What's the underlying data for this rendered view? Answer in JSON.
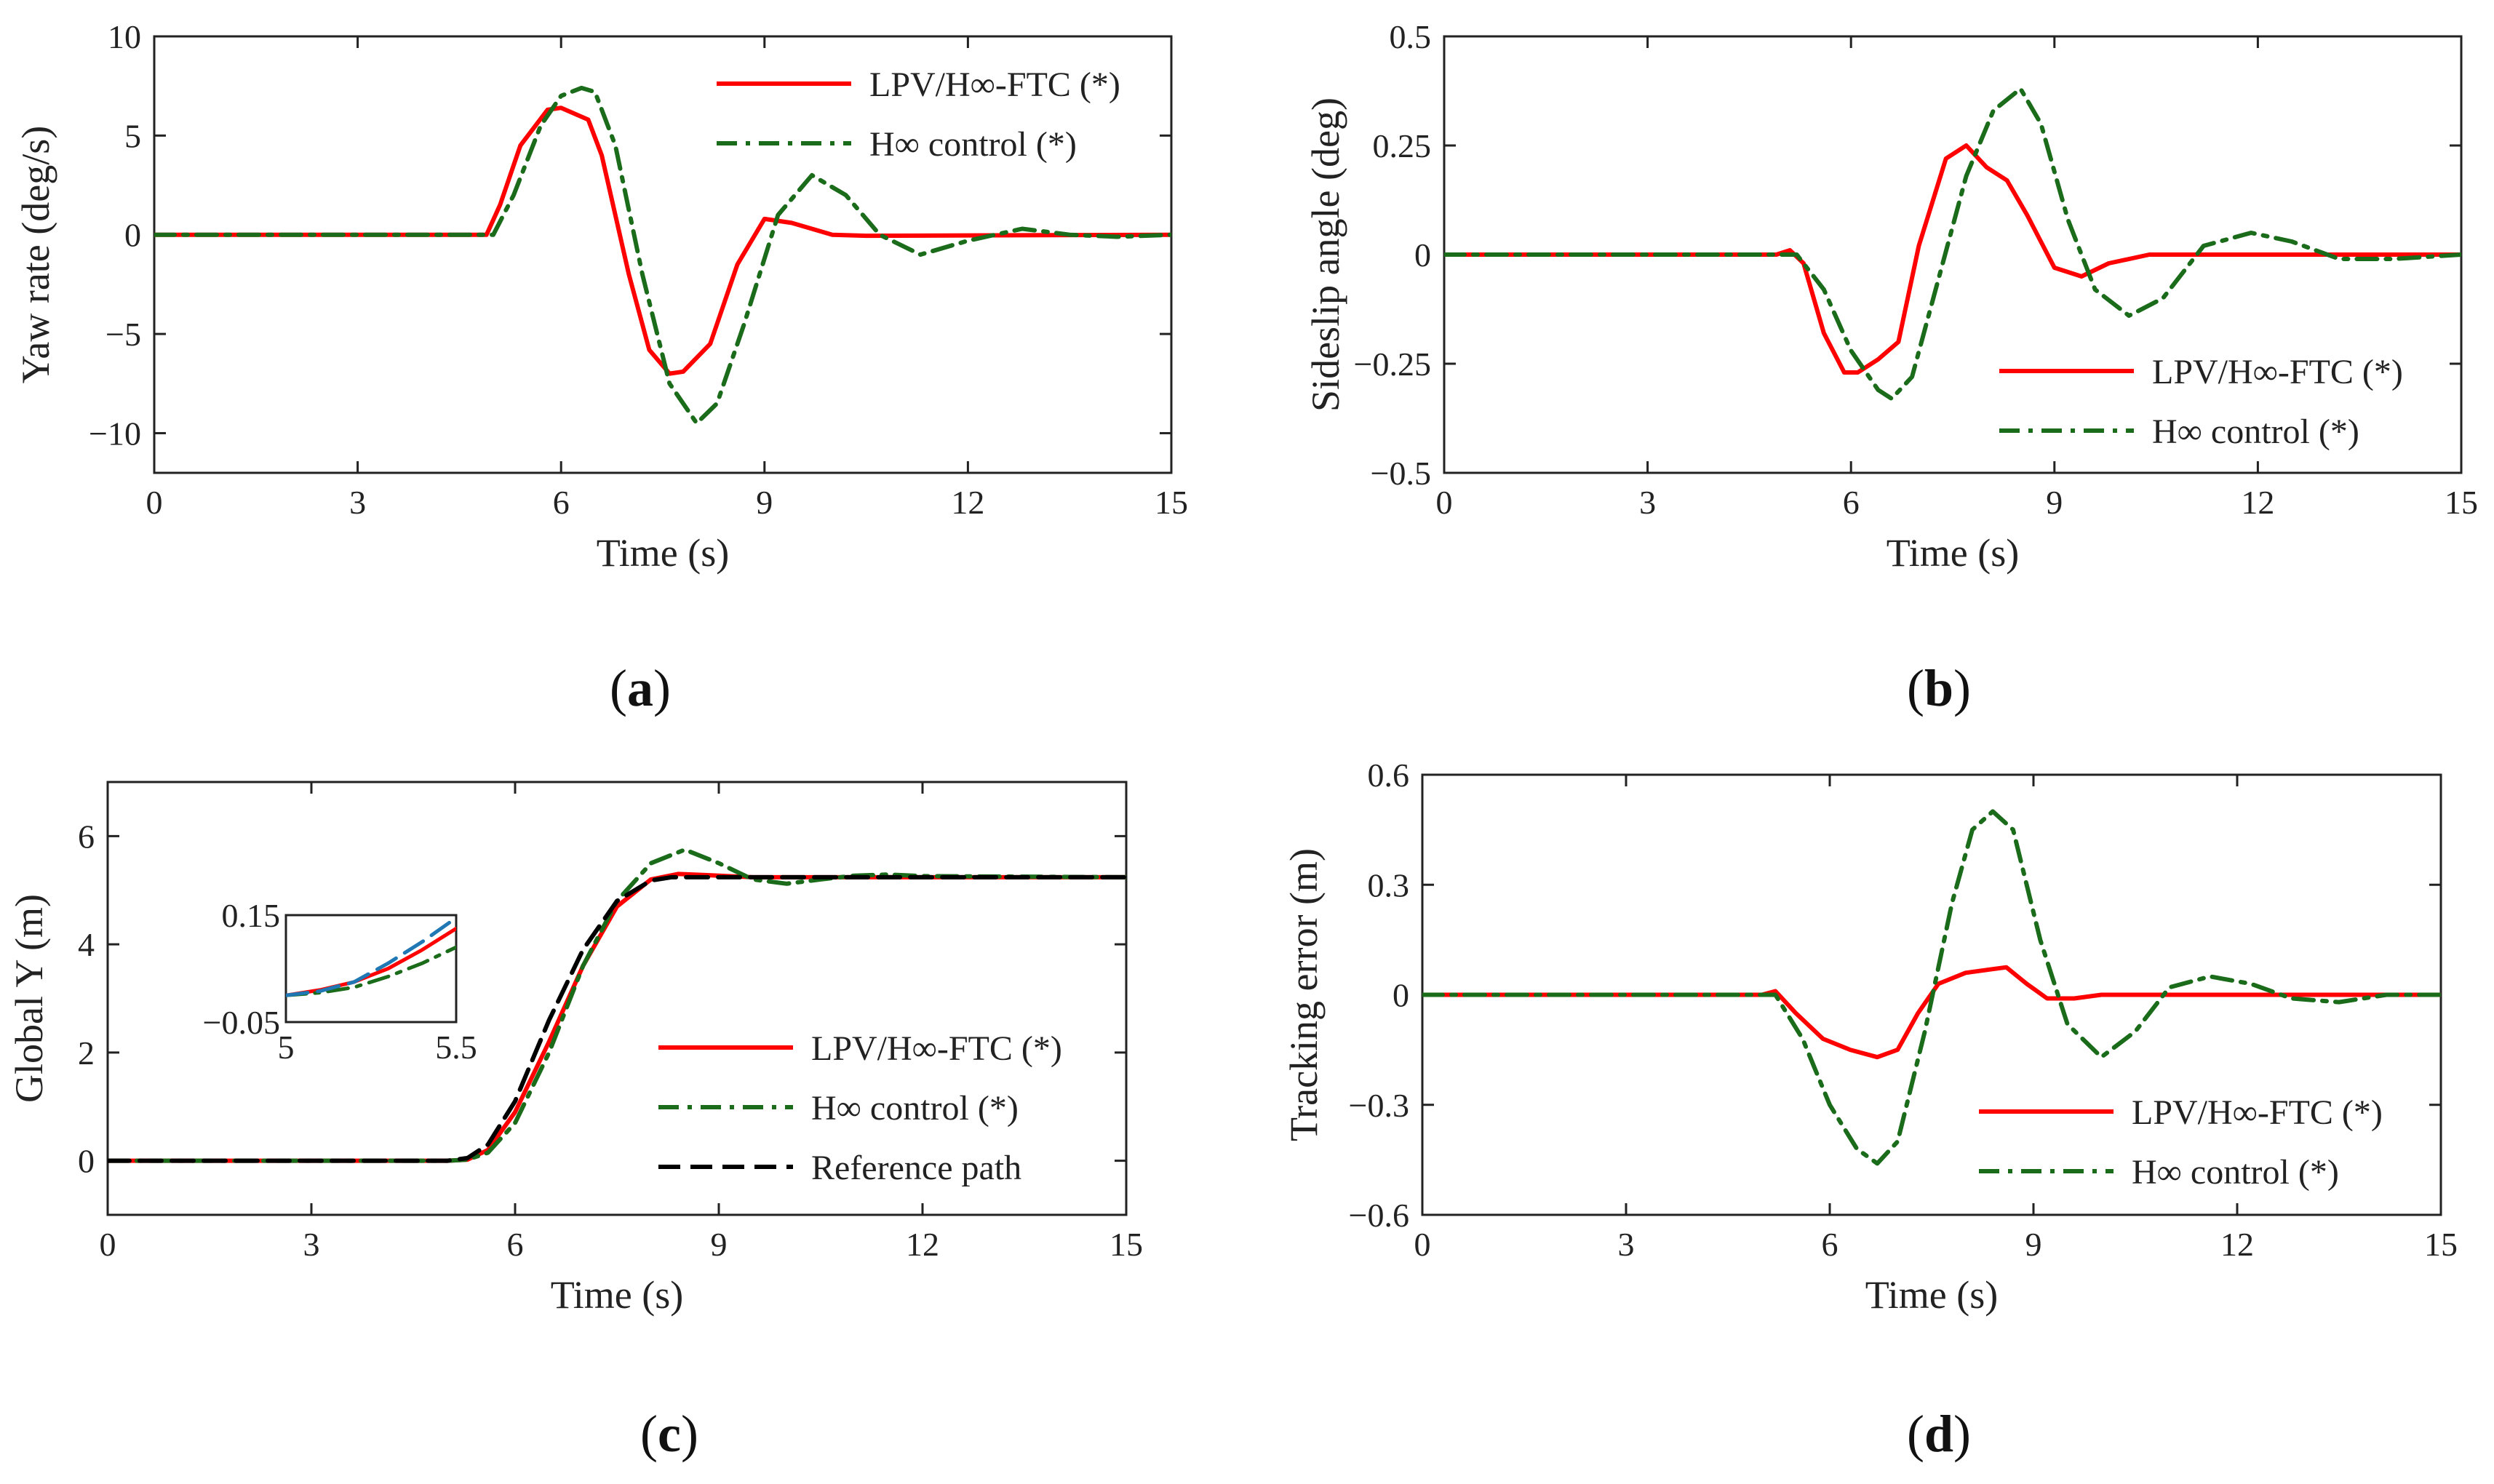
{
  "figure": {
    "panel_labels": {
      "a": "a",
      "b": "b",
      "c": "c",
      "d": "d"
    }
  },
  "chart_data": [
    {
      "id": "a",
      "type": "line",
      "title": "",
      "caption": "(a)",
      "xlabel": "Time (s)",
      "ylabel": "Yaw rate (deg/s)",
      "xlim": [
        0,
        15
      ],
      "ylim": [
        -12,
        10
      ],
      "xticks": [
        0,
        3,
        6,
        9,
        12,
        15
      ],
      "xtick_labels": [
        "0",
        "3",
        "6",
        "9",
        "12",
        "15"
      ],
      "yticks": [
        -10,
        -5,
        0,
        5,
        10
      ],
      "ytick_labels": [
        "−10",
        "−5",
        "0",
        "5",
        "10"
      ],
      "legend_position": "top-right",
      "series": [
        {
          "name": "LPV/H∞-FTC (*)",
          "color": "#ff0000",
          "style": "solid",
          "x": [
            0,
            4.9,
            5.1,
            5.4,
            5.8,
            6.0,
            6.4,
            6.6,
            7.0,
            7.3,
            7.6,
            7.8,
            8.2,
            8.6,
            9.0,
            9.4,
            10.0,
            10.5,
            15
          ],
          "y": [
            0,
            0,
            1.5,
            4.5,
            6.3,
            6.4,
            5.8,
            4.0,
            -2.0,
            -5.8,
            -7.0,
            -6.9,
            -5.5,
            -1.5,
            0.8,
            0.6,
            0.0,
            -0.05,
            0
          ]
        },
        {
          "name": "H∞ control (*)",
          "color": "#1a6b1a",
          "style": "dashdot",
          "x": [
            0,
            5.0,
            5.3,
            5.7,
            6.0,
            6.3,
            6.5,
            6.8,
            7.2,
            7.6,
            8.0,
            8.3,
            8.7,
            9.2,
            9.7,
            10.2,
            10.7,
            11.3,
            12.0,
            12.8,
            13.5,
            14.2,
            15
          ],
          "y": [
            0,
            0,
            2.0,
            5.5,
            7.0,
            7.4,
            7.2,
            4.5,
            -2.0,
            -7.5,
            -9.5,
            -8.5,
            -4.5,
            1.0,
            3.0,
            2.0,
            0.0,
            -1.0,
            -0.3,
            0.3,
            0.0,
            -0.1,
            0
          ]
        }
      ]
    },
    {
      "id": "b",
      "type": "line",
      "title": "",
      "caption": "(b)",
      "xlabel": "Time (s)",
      "ylabel": "Sideslip angle (deg)",
      "xlim": [
        0,
        15
      ],
      "ylim": [
        -0.5,
        0.5
      ],
      "xticks": [
        0,
        3,
        6,
        9,
        12,
        15
      ],
      "xtick_labels": [
        "0",
        "3",
        "6",
        "9",
        "12",
        "15"
      ],
      "yticks": [
        -0.5,
        -0.25,
        0,
        0.25,
        0.5
      ],
      "ytick_labels": [
        "−0.5",
        "−0.25",
        "0",
        "0.25",
        "0.5"
      ],
      "legend_position": "bottom-right",
      "series": [
        {
          "name": "LPV/H∞-FTC (*)",
          "color": "#ff0000",
          "style": "solid",
          "x": [
            0,
            4.9,
            5.1,
            5.3,
            5.6,
            5.9,
            6.1,
            6.4,
            6.7,
            7.0,
            7.4,
            7.7,
            8.0,
            8.3,
            8.6,
            9.0,
            9.4,
            9.8,
            10.4,
            11.0,
            15
          ],
          "y": [
            0,
            0,
            0.01,
            -0.02,
            -0.18,
            -0.27,
            -0.27,
            -0.24,
            -0.2,
            0.02,
            0.22,
            0.25,
            0.2,
            0.17,
            0.09,
            -0.03,
            -0.05,
            -0.02,
            0.0,
            0.0,
            0
          ]
        },
        {
          "name": "H∞ control (*)",
          "color": "#1a6b1a",
          "style": "dashdot",
          "x": [
            0,
            5.0,
            5.2,
            5.6,
            6.0,
            6.4,
            6.6,
            6.9,
            7.3,
            7.7,
            8.1,
            8.5,
            8.8,
            9.2,
            9.6,
            10.1,
            10.6,
            11.2,
            11.9,
            12.5,
            13.2,
            14.0,
            15
          ],
          "y": [
            0,
            0,
            0.0,
            -0.08,
            -0.22,
            -0.31,
            -0.33,
            -0.28,
            -0.05,
            0.18,
            0.33,
            0.38,
            0.3,
            0.08,
            -0.08,
            -0.14,
            -0.1,
            0.02,
            0.05,
            0.03,
            -0.01,
            -0.01,
            0
          ]
        }
      ]
    },
    {
      "id": "c",
      "type": "line",
      "title": "",
      "caption": "(c)",
      "xlabel": "Time (s)",
      "ylabel": "Global Y (m)",
      "xlim": [
        0,
        15
      ],
      "ylim": [
        -1,
        7
      ],
      "xticks": [
        0,
        3,
        6,
        9,
        12,
        15
      ],
      "xtick_labels": [
        "0",
        "3",
        "6",
        "9",
        "12",
        "15"
      ],
      "yticks": [
        0,
        2,
        4,
        6
      ],
      "ytick_labels": [
        "0",
        "2",
        "4",
        "6"
      ],
      "legend_position": "bottom-right",
      "series": [
        {
          "name": "LPV/H∞-FTC (*)",
          "color": "#ff0000",
          "style": "solid",
          "x": [
            0,
            5.0,
            5.3,
            5.6,
            6.0,
            6.5,
            7.0,
            7.5,
            8.0,
            8.4,
            8.8,
            9.5,
            15
          ],
          "y": [
            0,
            0,
            0.02,
            0.2,
            0.9,
            2.2,
            3.6,
            4.7,
            5.2,
            5.3,
            5.28,
            5.24,
            5.24
          ]
        },
        {
          "name": "H∞ control (*)",
          "color": "#1a6b1a",
          "style": "dashdot",
          "x": [
            0,
            5.0,
            5.3,
            5.6,
            6.0,
            6.5,
            7.0,
            7.5,
            8.0,
            8.5,
            9.0,
            9.5,
            10.0,
            10.5,
            11.0,
            11.5,
            12.0,
            15
          ],
          "y": [
            0,
            0,
            0.02,
            0.15,
            0.7,
            2.0,
            3.6,
            4.8,
            5.5,
            5.75,
            5.5,
            5.2,
            5.12,
            5.2,
            5.27,
            5.29,
            5.26,
            5.24
          ]
        },
        {
          "name": "Reference path",
          "color": "#000000",
          "style": "dashed",
          "x": [
            0,
            5.0,
            5.3,
            5.6,
            6.0,
            6.5,
            7.0,
            7.5,
            8.0,
            8.3,
            8.6,
            15
          ],
          "y": [
            0,
            0,
            0.05,
            0.3,
            1.1,
            2.6,
            3.9,
            4.8,
            5.18,
            5.24,
            5.24,
            5.24
          ]
        }
      ],
      "inset": {
        "xlim": [
          5,
          5.5
        ],
        "ylim": [
          -0.05,
          0.15
        ],
        "xtick_labels": [
          "5",
          "5.5"
        ],
        "ytick_labels": [
          "−0.05",
          "0.15"
        ],
        "series": [
          {
            "name": "LPV/H∞-FTC (*)",
            "color": "#ff0000",
            "style": "solid",
            "x": [
              5.0,
              5.1,
              5.2,
              5.3,
              5.4,
              5.5
            ],
            "y": [
              0.0,
              0.01,
              0.025,
              0.05,
              0.085,
              0.125
            ]
          },
          {
            "name": "H∞ control (*)",
            "color": "#1a6b1a",
            "style": "dashdot",
            "x": [
              5.0,
              5.1,
              5.2,
              5.3,
              5.4,
              5.5
            ],
            "y": [
              0.0,
              0.005,
              0.015,
              0.035,
              0.06,
              0.09
            ]
          },
          {
            "name": "Reference path",
            "color": "#1f77b4",
            "style": "dashed",
            "x": [
              5.0,
              5.1,
              5.2,
              5.3,
              5.4,
              5.5
            ],
            "y": [
              0.0,
              0.008,
              0.025,
              0.06,
              0.1,
              0.145
            ]
          }
        ]
      }
    },
    {
      "id": "d",
      "type": "line",
      "title": "",
      "caption": "(d)",
      "xlabel": "Time (s)",
      "ylabel": "Tracking error (m)",
      "xlim": [
        0,
        15
      ],
      "ylim": [
        -0.6,
        0.6
      ],
      "xticks": [
        0,
        3,
        6,
        9,
        12,
        15
      ],
      "xtick_labels": [
        "0",
        "3",
        "6",
        "9",
        "12",
        "15"
      ],
      "yticks": [
        -0.6,
        -0.3,
        0,
        0.3,
        0.6
      ],
      "ytick_labels": [
        "−0.6",
        "−0.3",
        "0",
        "0.3",
        "0.6"
      ],
      "legend_position": "bottom-right",
      "series": [
        {
          "name": "LPV/H∞-FTC (*)",
          "color": "#ff0000",
          "style": "solid",
          "x": [
            0,
            5.0,
            5.2,
            5.5,
            5.9,
            6.3,
            6.7,
            7.0,
            7.3,
            7.6,
            8.0,
            8.4,
            8.6,
            8.9,
            9.2,
            9.6,
            10.0,
            15
          ],
          "y": [
            0,
            0,
            0.01,
            -0.05,
            -0.12,
            -0.15,
            -0.17,
            -0.15,
            -0.05,
            0.03,
            0.06,
            0.07,
            0.075,
            0.03,
            -0.01,
            -0.01,
            0,
            0
          ]
        },
        {
          "name": "H∞ control (*)",
          "color": "#1a6b1a",
          "style": "dashdot",
          "x": [
            0,
            5.0,
            5.2,
            5.6,
            6.0,
            6.4,
            6.7,
            7.0,
            7.4,
            7.8,
            8.1,
            8.4,
            8.7,
            9.1,
            9.5,
            10.0,
            10.5,
            11.0,
            11.6,
            12.2,
            12.8,
            13.5,
            14.2,
            15
          ],
          "y": [
            0,
            0,
            0.0,
            -0.12,
            -0.3,
            -0.42,
            -0.46,
            -0.4,
            -0.1,
            0.25,
            0.45,
            0.5,
            0.45,
            0.15,
            -0.08,
            -0.17,
            -0.1,
            0.02,
            0.05,
            0.03,
            -0.01,
            -0.02,
            0.0,
            0
          ]
        }
      ]
    }
  ]
}
